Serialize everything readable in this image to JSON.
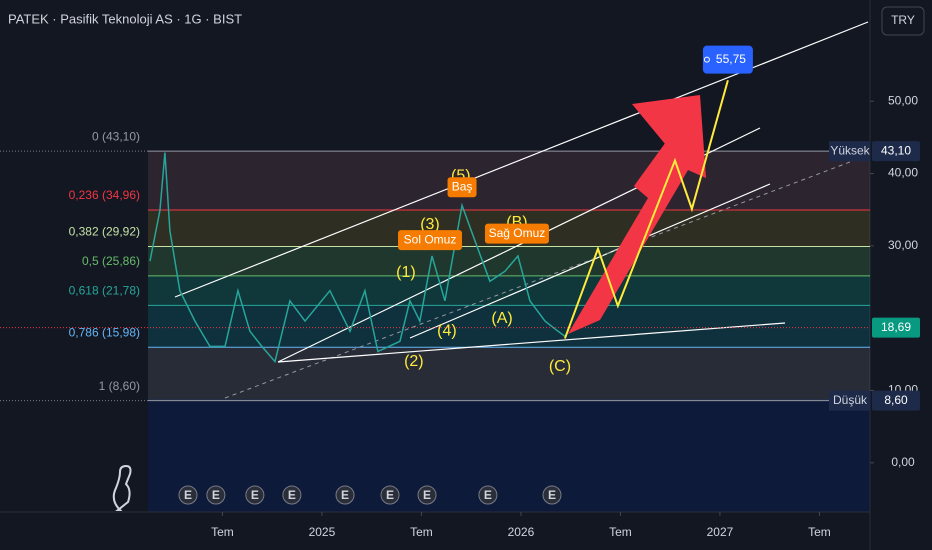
{
  "chart_data": {
    "type": "line",
    "title": "PATEK · Pasifik Teknoloji AS · 1G · BIST",
    "currency": "TRY",
    "xlim": [
      2024.126,
      2027.754
    ],
    "xticks": [
      {
        "value": 2024.5,
        "label": "Tem"
      },
      {
        "value": 2025,
        "label": "2025"
      },
      {
        "value": 2025.5,
        "label": "Tem"
      },
      {
        "value": 2026,
        "label": "2026"
      },
      {
        "value": 2026.5,
        "label": "Tem"
      },
      {
        "value": 2027,
        "label": "2027"
      },
      {
        "value": 2027.5,
        "label": "Tem"
      }
    ],
    "ylim": [
      -6.8,
      64
    ],
    "yticks": [
      {
        "value": 0,
        "label": "0,00"
      },
      {
        "value": 10,
        "label": "10,00"
      },
      {
        "value": 30,
        "label": "30,00"
      },
      {
        "value": 40,
        "label": "40,00"
      },
      {
        "value": 50,
        "label": "50,00"
      }
    ],
    "series": [
      {
        "color": "#26a69a",
        "x": [
          2024.136,
          2024.186,
          2024.211,
          2024.236,
          2024.286,
          2024.362,
          2024.437,
          2024.513,
          2024.578,
          2024.638,
          2024.698,
          2024.764,
          2024.839,
          2024.915,
          2025.04,
          2025.141,
          2025.216,
          2025.281,
          2025.392,
          2025.442,
          2025.492,
          2025.553,
          2025.618,
          2025.704,
          2025.769,
          2025.844,
          2025.92,
          2025.985,
          2026.045,
          2026.121,
          2026.186,
          2026.221
        ],
        "values": [
          27.9,
          34.9,
          42.9,
          32.1,
          23.8,
          19.6,
          16.1,
          16.1,
          23.8,
          18.2,
          16.1,
          14.0,
          22.4,
          19.6,
          23.8,
          18.2,
          23.8,
          15.4,
          16.8,
          22.4,
          19.6,
          28.6,
          22.4,
          35.6,
          30.7,
          25.1,
          26.5,
          28.6,
          22.4,
          19.6,
          18.2,
          17.5
        ]
      }
    ],
    "projection": {
      "color": "#ffeb3b",
      "x": [
        2026.221,
        2026.387,
        2026.487,
        2026.774,
        2026.859,
        2027.04
      ],
      "values": [
        17.2,
        29.6,
        21.7,
        41.8,
        35.1,
        52.9
      ]
    },
    "fib_levels": [
      {
        "value": 43.1,
        "label": "0 (43,10)",
        "color": "#9598a1",
        "band": "rgba(120,80,90,0.25)"
      },
      {
        "value": 34.96,
        "label": "0,236 (34,96)",
        "color": "#f23645",
        "band": "rgba(110,100,40,0.3)"
      },
      {
        "value": 29.92,
        "label": "0,382 (29,92)",
        "color": "#c5e1a5",
        "band": "rgba(76,175,80,0.22)"
      },
      {
        "value": 25.86,
        "label": "0,5 (25,86)",
        "color": "#66bb6a",
        "band": "rgba(8,153,129,0.25)"
      },
      {
        "value": 21.78,
        "label": "0,618 (21,78)",
        "color": "#26a69a",
        "band": "rgba(0,150,170,0.2)"
      },
      {
        "value": 15.98,
        "label": "0,786 (15,98)",
        "color": "#64b5f6",
        "band": "rgba(120,123,134,0.22)"
      },
      {
        "value": 8.6,
        "label": "1 (8,60)",
        "color": "#9598a1"
      }
    ],
    "high": {
      "label": "Yüksek",
      "value": 43.1,
      "value_label": "43,10"
    },
    "low": {
      "label": "Düşük",
      "value": 8.6,
      "value_label": "8,60"
    },
    "last_price": {
      "value": 18.69,
      "label": "18,69"
    },
    "target": {
      "value": 55.75,
      "label": "55,75",
      "x": 2027.04
    },
    "waves": [
      {
        "label": "(1)",
        "x": 2025.422,
        "y": 26.3
      },
      {
        "label": "(2)",
        "x": 2025.462,
        "y": 14.0
      },
      {
        "label": "(3)",
        "x": 2025.543,
        "y": 32.9
      },
      {
        "label": "(4)",
        "x": 2025.628,
        "y": 18.2
      },
      {
        "label": "(5)",
        "x": 2025.698,
        "y": 39.6
      },
      {
        "label": "(A)",
        "x": 2025.905,
        "y": 19.9
      },
      {
        "label": "(B)",
        "x": 2025.98,
        "y": 33.2
      },
      {
        "label": "(C)",
        "x": 2026.196,
        "y": 13.3
      }
    ],
    "pattern_labels": [
      {
        "label": "Sol Omuz",
        "x": 2025.543,
        "y": 30.8
      },
      {
        "label": "Baş",
        "x": 2025.704,
        "y": 38.1
      },
      {
        "label": "Sağ Omuz",
        "x": 2025.98,
        "y": 31.7
      }
    ],
    "events": [
      {
        "label": "E",
        "x": 2024.327
      },
      {
        "label": "E",
        "x": 2024.467
      },
      {
        "label": "E",
        "x": 2024.663
      },
      {
        "label": "E",
        "x": 2024.849
      },
      {
        "label": "E",
        "x": 2025.116
      },
      {
        "label": "E",
        "x": 2025.342
      },
      {
        "label": "E",
        "x": 2025.528
      },
      {
        "label": "E",
        "x": 2025.834
      },
      {
        "label": "E",
        "x": 2026.156
      }
    ]
  }
}
